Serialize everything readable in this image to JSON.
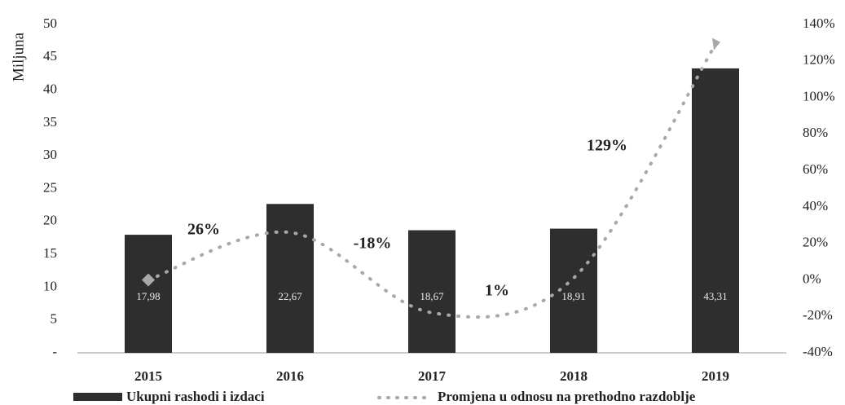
{
  "chart_data": {
    "type": "bar_line",
    "y_label": "Miljuna",
    "categories": [
      "2015",
      "2016",
      "2017",
      "2018",
      "2019"
    ],
    "series": [
      {
        "name": "Ukupni rashodi i izdaci",
        "type": "bar",
        "color": "#2e2e2e",
        "values": [
          17.98,
          22.67,
          18.67,
          18.91,
          43.31
        ],
        "value_labels": [
          "17,98",
          "22,67",
          "18,67",
          "18,91",
          "43,31"
        ]
      },
      {
        "name": "Promjena u odnosu na prethodno razdoblje",
        "type": "line",
        "axis": "y2",
        "color": "#a8a8a8",
        "values": [
          0,
          26,
          -18,
          1,
          129
        ],
        "value_labels": [
          null,
          "26%",
          "-18%",
          "1%",
          "129%"
        ]
      }
    ],
    "ylim": [
      0,
      50
    ],
    "yticks": [
      {
        "value": 0,
        "label": "-"
      },
      5,
      10,
      15,
      20,
      25,
      30,
      35,
      40,
      45,
      50
    ],
    "y2lim": [
      -40,
      140
    ],
    "y2ticks": [
      {
        "value": -40,
        "label": "-40%"
      },
      {
        "value": -20,
        "label": "-20%"
      },
      {
        "value": 0,
        "label": "0%"
      },
      {
        "value": 20,
        "label": "20%"
      },
      {
        "value": 40,
        "label": "40%"
      },
      {
        "value": 60,
        "label": "60%"
      },
      {
        "value": 80,
        "label": "80%"
      },
      {
        "value": 100,
        "label": "100%"
      },
      {
        "value": 120,
        "label": "120%"
      },
      {
        "value": 140,
        "label": "140%"
      }
    ]
  }
}
